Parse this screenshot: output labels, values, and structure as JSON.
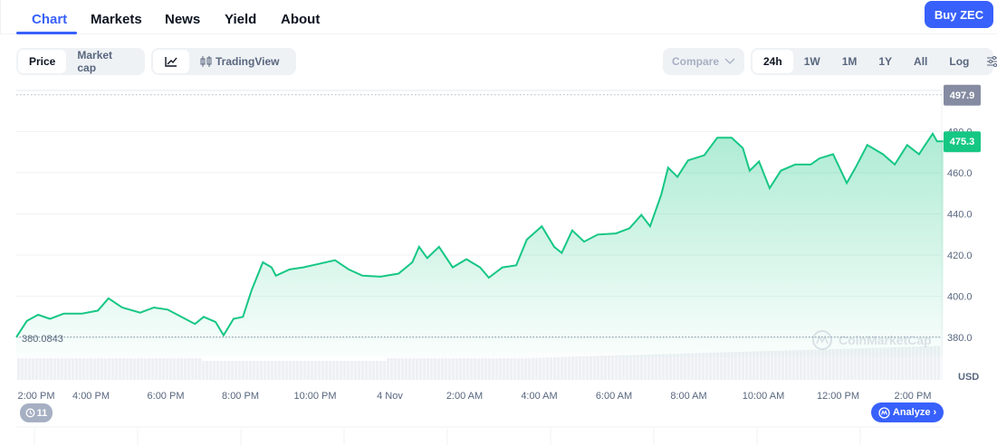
{
  "tabs": [
    {
      "label": "Chart",
      "active": true
    },
    {
      "label": "Markets"
    },
    {
      "label": "News"
    },
    {
      "label": "Yield"
    },
    {
      "label": "About"
    }
  ],
  "buy_button": "Buy ZEC",
  "metric_toggle": {
    "items": [
      "Price",
      "Market cap"
    ],
    "selected": "Price"
  },
  "chart_style": {
    "line_icon": "line-chart-icon",
    "tradingview_icon": "candlestick-icon",
    "tradingview_label": "TradingView"
  },
  "compare": {
    "label": "Compare",
    "icon": "chevron-down-icon"
  },
  "ranges": {
    "items": [
      "24h",
      "1W",
      "1M",
      "1Y",
      "All"
    ],
    "selected": "24h",
    "log_label": "Log",
    "settings_icon": "sliders-icon"
  },
  "watermark": "CoinMarketCap",
  "history_badge": {
    "icon": "history-icon",
    "count": "11"
  },
  "analyze_button": "Analyze",
  "colors": {
    "accent": "#3861fb",
    "line": "#16c784",
    "high_label": "#858ca2"
  },
  "chart_data": {
    "type": "area",
    "currency": "USD",
    "ylim": [
      370,
      500
    ],
    "yticks": [
      "380.0",
      "400.0",
      "420.0",
      "440.0",
      "460.0",
      "480.0"
    ],
    "ytick_values": [
      380,
      400,
      420,
      440,
      460,
      480
    ],
    "xticks": [
      "2:00 PM",
      "4:00 PM",
      "6:00 PM",
      "8:00 PM",
      "10:00 PM",
      "4 Nov",
      "2:00 AM",
      "4:00 AM",
      "6:00 AM",
      "8:00 AM",
      "10:00 AM",
      "12:00 PM",
      "2:00 PM"
    ],
    "xtick_times": [
      "3 14:00",
      "3 16:00",
      "3 18:00",
      "3 20:00",
      "3 22:00",
      "4 00:00",
      "4 02:00",
      "4 04:00",
      "4 06:00",
      "4 08:00",
      "4 10:00",
      "4 12:00",
      "4 14:00"
    ],
    "high_label": "497.9",
    "high": 497.9,
    "open_label": "380.0843",
    "open": 380.0843,
    "current_label": "475.3",
    "current": 475.3,
    "x": [
      "3 14:00",
      "3 14:17",
      "3 14:35",
      "3 14:54",
      "3 15:16",
      "3 15:45",
      "3 16:11",
      "3 16:28",
      "3 16:50",
      "3 17:19",
      "3 17:41",
      "3 18:03",
      "3 18:25",
      "3 18:47",
      "3 19:01",
      "3 19:20",
      "3 19:33",
      "3 19:49",
      "3 20:04",
      "3 20:18",
      "3 20:36",
      "3 20:50",
      "3 20:57",
      "3 21:19",
      "3 21:41",
      "3 22:03",
      "3 22:32",
      "3 22:54",
      "3 23:16",
      "3 23:45",
      "4 00:14",
      "4 00:36",
      "4 00:47",
      "4 01:00",
      "4 01:19",
      "4 01:41",
      "4 02:03",
      "4 02:25",
      "4 02:39",
      "4 03:01",
      "4 03:23",
      "4 03:40",
      "4 04:04",
      "4 04:24",
      "4 04:36",
      "4 04:53",
      "4 05:12",
      "4 05:34",
      "4 06:03",
      "4 06:25",
      "4 06:44",
      "4 06:58",
      "4 07:16",
      "4 07:27",
      "4 07:42",
      "4 07:59",
      "4 08:25",
      "4 08:46",
      "4 09:09",
      "4 09:27",
      "4 09:38",
      "4 09:53",
      "4 10:10",
      "4 10:28",
      "4 10:51",
      "4 11:16",
      "4 11:30",
      "4 11:52",
      "4 12:14",
      "4 12:28",
      "4 12:47",
      "4 13:12",
      "4 13:31",
      "4 13:51",
      "4 14:10",
      "4 14:32",
      "4 14:39",
      "4 14:49"
    ],
    "values": [
      380.1,
      388,
      391,
      389,
      391.5,
      391.5,
      393,
      399,
      394.5,
      392,
      394.5,
      393.5,
      390,
      386.5,
      390,
      387.5,
      381,
      389,
      390,
      403,
      416.5,
      414,
      410,
      413,
      414,
      415.5,
      417.5,
      413,
      410,
      409.5,
      411,
      416.5,
      424,
      418.5,
      424,
      414,
      418,
      414,
      409,
      414,
      415,
      427.5,
      434,
      424,
      421,
      432,
      426.5,
      430,
      430.5,
      433,
      439.5,
      434,
      449.5,
      462.5,
      458,
      466,
      468.5,
      477,
      477,
      472,
      461,
      465.5,
      452.5,
      461,
      464,
      464,
      467,
      469,
      455,
      462.5,
      473.5,
      469,
      464,
      473.5,
      469,
      479,
      475.3,
      475.3
    ]
  }
}
